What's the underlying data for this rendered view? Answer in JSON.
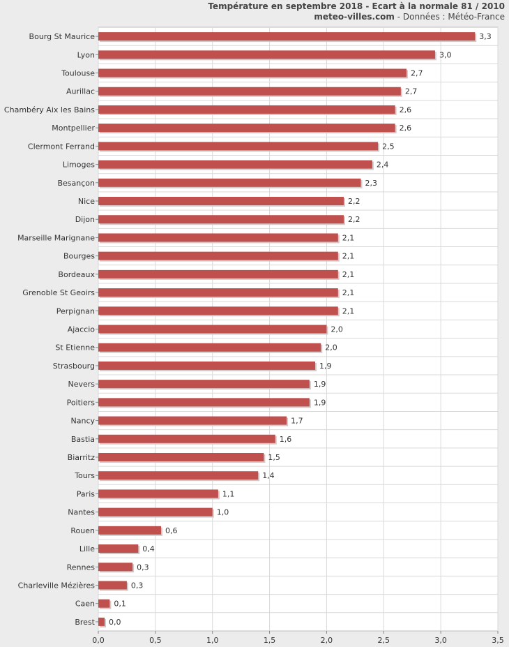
{
  "header": {
    "title": "Température en septembre 2018 - Ecart à la normale 81 / 2010",
    "source": "meteo-villes.com",
    "source_suffix": " - Données : Météo-France"
  },
  "colors": {
    "bar": "#c0504d",
    "bar_shadow": "#d4c9c9",
    "plot_background": "#ffffff",
    "grid": "#d9d9d9",
    "page_background": "#ececec"
  },
  "chart_data": {
    "type": "bar",
    "orientation": "horizontal",
    "title": "Température en septembre 2018 - Ecart à la normale 81 / 2010",
    "xlabel": "",
    "ylabel": "",
    "xlim": [
      0,
      3.5
    ],
    "x_ticks": [
      "0,0",
      "0,5",
      "1,0",
      "1,5",
      "2,0",
      "2,5",
      "3,0",
      "3,5"
    ],
    "grid": true,
    "categories": [
      "Bourg St Maurice",
      "Lyon",
      "Toulouse",
      "Aurillac",
      "Chambéry Aix les Bains",
      "Montpellier",
      "Clermont Ferrand",
      "Limoges",
      "Besançon",
      "Nice",
      "Dijon",
      "Marseille Marignane",
      "Bourges",
      "Bordeaux",
      "Grenoble St Geoirs",
      "Perpignan",
      "Ajaccio",
      "St Etienne",
      "Strasbourg",
      "Nevers",
      "Poitiers",
      "Nancy",
      "Bastia",
      "Biarritz",
      "Tours",
      "Paris",
      "Nantes",
      "Rouen",
      "Lille",
      "Rennes",
      "Charleville Mézières",
      "Caen",
      "Brest"
    ],
    "values": [
      3.3,
      3.0,
      2.7,
      2.7,
      2.6,
      2.6,
      2.5,
      2.4,
      2.3,
      2.2,
      2.2,
      2.1,
      2.1,
      2.1,
      2.1,
      2.1,
      2.0,
      2.0,
      1.9,
      1.9,
      1.9,
      1.7,
      1.6,
      1.5,
      1.4,
      1.1,
      1.0,
      0.6,
      0.4,
      0.3,
      0.3,
      0.1,
      0.0
    ],
    "value_labels": [
      "3,3",
      "3,0",
      "2,7",
      "2,7",
      "2,6",
      "2,6",
      "2,5",
      "2,4",
      "2,3",
      "2,2",
      "2,2",
      "2,1",
      "2,1",
      "2,1",
      "2,1",
      "2,1",
      "2,0",
      "2,0",
      "1,9",
      "1,9",
      "1,9",
      "1,7",
      "1,6",
      "1,5",
      "1,4",
      "1,1",
      "1,0",
      "0,6",
      "0,4",
      "0,3",
      "0,3",
      "0,1",
      "0,0"
    ],
    "bar_values_measured": [
      3.3,
      2.95,
      2.7,
      2.65,
      2.6,
      2.6,
      2.45,
      2.4,
      2.3,
      2.15,
      2.15,
      2.1,
      2.1,
      2.1,
      2.1,
      2.1,
      2.0,
      1.95,
      1.9,
      1.85,
      1.85,
      1.65,
      1.55,
      1.45,
      1.4,
      1.05,
      1.0,
      0.55,
      0.35,
      0.3,
      0.25,
      0.1,
      0.03
    ]
  }
}
